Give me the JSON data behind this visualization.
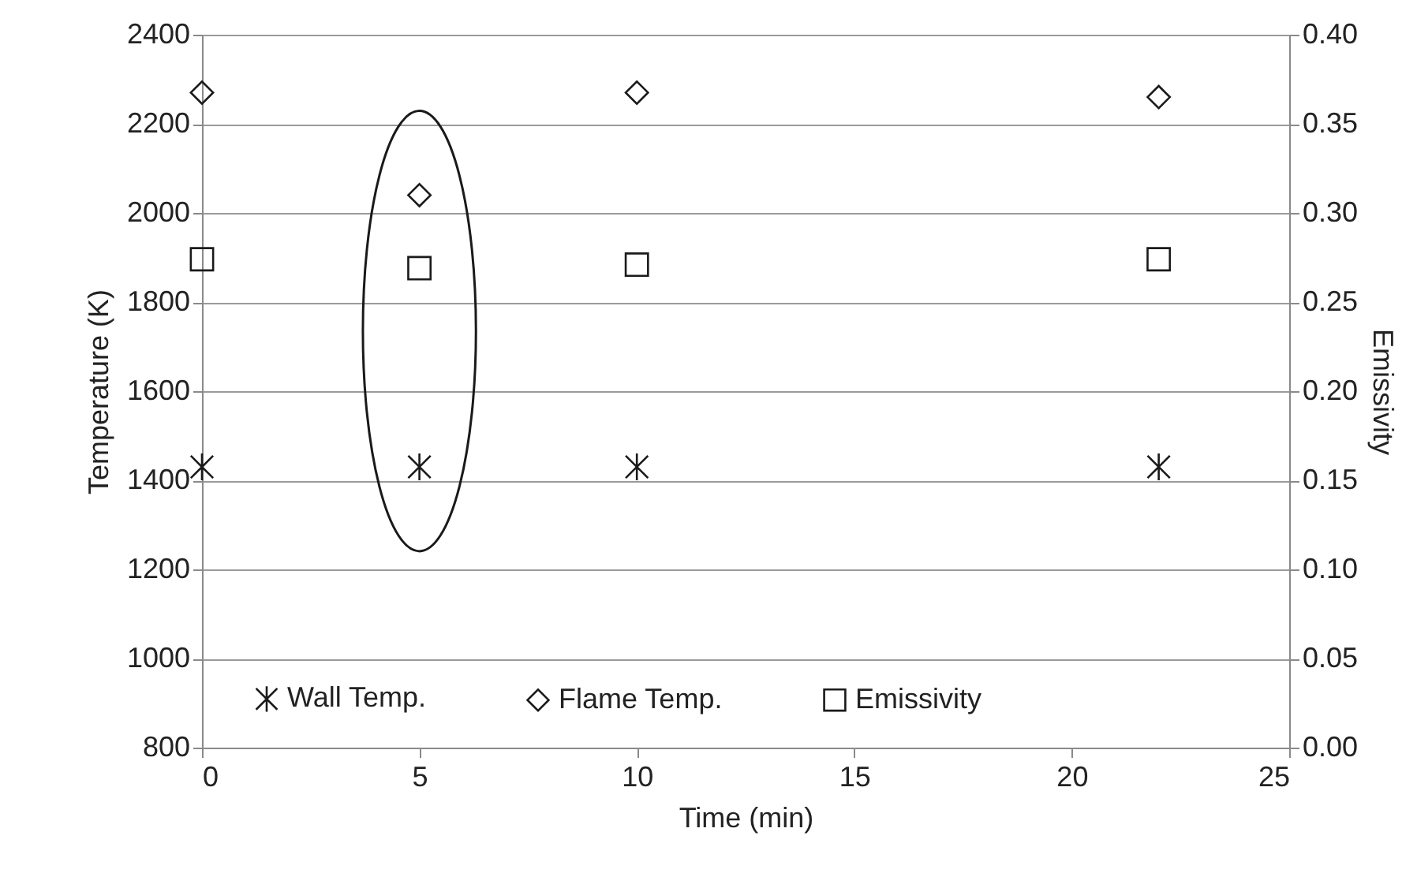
{
  "chart_data": {
    "type": "scatter",
    "xlabel": "Time (min)",
    "ylabel": "Temperature (K)",
    "y2label": "Emissivity",
    "x": [
      0,
      5,
      10,
      22
    ],
    "series": [
      {
        "name": "Wall Temp.",
        "color": "#1a1a1a",
        "marker": "cross",
        "values": [
          1430,
          1430,
          1430,
          1430
        ]
      },
      {
        "name": "Flame Temp.",
        "color": "#1a1a1a",
        "marker": "diamond",
        "values": [
          2270,
          2040,
          2270,
          2260
        ]
      },
      {
        "name": "Emissivity",
        "color": "#1a1a1a",
        "marker": "square",
        "axis": "y2",
        "values": [
          0.274,
          0.269,
          0.271,
          0.274
        ]
      }
    ],
    "xlim": [
      0,
      25
    ],
    "xticks": [
      0,
      5,
      10,
      15,
      20,
      25
    ],
    "ylim": [
      800,
      2400
    ],
    "yticks": [
      800,
      1000,
      1200,
      1400,
      1600,
      1800,
      2000,
      2200,
      2400
    ],
    "y2lim": [
      0,
      0.4
    ],
    "y2ticks": [
      {
        "value": 0,
        "label": "0.00"
      },
      {
        "value": 0.05,
        "label": "0.05"
      },
      {
        "value": 0.1,
        "label": "0.10"
      },
      {
        "value": 0.15,
        "label": "0.15"
      },
      {
        "value": 0.2,
        "label": "0.20"
      },
      {
        "value": 0.25,
        "label": "0.25"
      },
      {
        "value": 0.3,
        "label": "0.30"
      },
      {
        "value": 0.35,
        "label": "0.35"
      },
      {
        "value": 0.4,
        "label": "0.40"
      }
    ],
    "grid": "y",
    "legend": "bottom"
  }
}
